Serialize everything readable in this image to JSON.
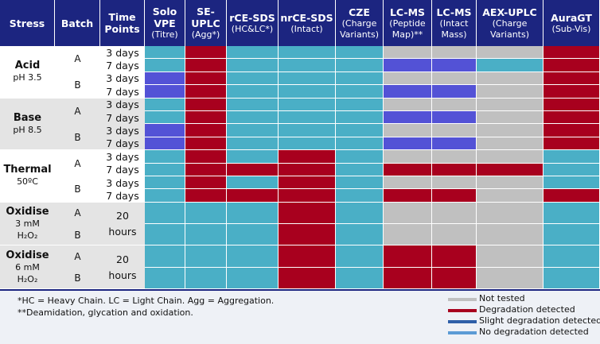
{
  "header": [
    {
      "name": "Stress"
    },
    {
      "name": "Batch"
    },
    {
      "name": "Time Points"
    },
    {
      "name": "Solo VPE",
      "note": "(Titre)"
    },
    {
      "name": "SE-UPLC",
      "note": "(Agg*)"
    },
    {
      "name": "rCE-SDS",
      "note": "(HC&LC*)"
    },
    {
      "name": "nrCE-SDS",
      "note": "(Intact)"
    },
    {
      "name": "CZE",
      "note": "(Charge Variants)"
    },
    {
      "name": "LC-MS",
      "note": "(Peptide Map)**"
    },
    {
      "name": "LC-MS",
      "note": "(Intact Mass)"
    },
    {
      "name": "AEX-UPLC",
      "note": "(Charge Variants)"
    },
    {
      "name": "AuraGT",
      "note": "(Sub-Vis)"
    }
  ],
  "groups": [
    {
      "stress": "Acid",
      "condition": "pH 3.5",
      "batches": [
        {
          "batch": "A",
          "times": [
            "3 days",
            "7 days"
          ],
          "cells": [
            [
              "#4aafc6",
              "#a8001e",
              "#4aafc6",
              "#4aafc6",
              "#4aafc6",
              "#c0c0c0",
              "#c0c0c0",
              "#c0c0c0",
              "#a8001e"
            ],
            [
              "#4aafc6",
              "#a8001e",
              "#4aafc6",
              "#4aafc6",
              "#4aafc6",
              "#5352d6",
              "#5352d6",
              "#4aafc6",
              "#a8001e"
            ]
          ]
        },
        {
          "batch": "B",
          "times": [
            "3 days",
            "7 days"
          ],
          "cells": [
            [
              "#5352d6",
              "#a8001e",
              "#4aafc6",
              "#4aafc6",
              "#4aafc6",
              "#c0c0c0",
              "#c0c0c0",
              "#c0c0c0",
              "#a8001e"
            ],
            [
              "#5352d6",
              "#a8001e",
              "#4aafc6",
              "#4aafc6",
              "#4aafc6",
              "#5352d6",
              "#5352d6",
              "#c0c0c0",
              "#a8001e"
            ]
          ]
        }
      ]
    },
    {
      "stress": "Base",
      "condition": "pH 8.5",
      "batches": [
        {
          "batch": "A",
          "times": [
            "3 days",
            "7 days"
          ],
          "cells": [
            [
              "#4aafc6",
              "#a8001e",
              "#4aafc6",
              "#4aafc6",
              "#4aafc6",
              "#c0c0c0",
              "#c0c0c0",
              "#c0c0c0",
              "#a8001e"
            ],
            [
              "#4aafc6",
              "#a8001e",
              "#4aafc6",
              "#4aafc6",
              "#4aafc6",
              "#5352d6",
              "#5352d6",
              "#c0c0c0",
              "#a8001e"
            ]
          ]
        },
        {
          "batch": "B",
          "times": [
            "3 days",
            "7 days"
          ],
          "cells": [
            [
              "#5352d6",
              "#a8001e",
              "#4aafc6",
              "#4aafc6",
              "#4aafc6",
              "#c0c0c0",
              "#c0c0c0",
              "#c0c0c0",
              "#a8001e"
            ],
            [
              "#5352d6",
              "#a8001e",
              "#4aafc6",
              "#4aafc6",
              "#4aafc6",
              "#5352d6",
              "#5352d6",
              "#c0c0c0",
              "#a8001e"
            ]
          ]
        }
      ]
    },
    {
      "stress": "Thermal",
      "condition": "50ºC",
      "batches": [
        {
          "batch": "A",
          "times": [
            "3 days",
            "7 days"
          ],
          "cells": [
            [
              "#4aafc6",
              "#a8001e",
              "#4aafc6",
              "#a8001e",
              "#4aafc6",
              "#c0c0c0",
              "#c0c0c0",
              "#c0c0c0",
              "#4aafc6"
            ],
            [
              "#4aafc6",
              "#a8001e",
              "#a8001e",
              "#a8001e",
              "#4aafc6",
              "#a8001e",
              "#a8001e",
              "#a8001e",
              "#4aafc6"
            ]
          ]
        },
        {
          "batch": "B",
          "times": [
            "3 days",
            "7 days"
          ],
          "cells": [
            [
              "#4aafc6",
              "#a8001e",
              "#4aafc6",
              "#a8001e",
              "#4aafc6",
              "#c0c0c0",
              "#c0c0c0",
              "#c0c0c0",
              "#4aafc6"
            ],
            [
              "#4aafc6",
              "#a8001e",
              "#a8001e",
              "#a8001e",
              "#4aafc6",
              "#a8001e",
              "#a8001e",
              "#c0c0c0",
              "#a8001e"
            ]
          ]
        }
      ]
    },
    {
      "stress": "Oxidise",
      "condition": "3 mM",
      "reagent": "H₂O₂",
      "time": "20 hours",
      "batches": [
        {
          "batch": "A",
          "cells": [
            [
              "#4aafc6",
              "#4aafc6",
              "#4aafc6",
              "#a8001e",
              "#4aafc6",
              "#c0c0c0",
              "#c0c0c0",
              "#c0c0c0",
              "#4aafc6"
            ]
          ]
        },
        {
          "batch": "B",
          "cells": [
            [
              "#4aafc6",
              "#4aafc6",
              "#4aafc6",
              "#a8001e",
              "#4aafc6",
              "#c0c0c0",
              "#c0c0c0",
              "#c0c0c0",
              "#4aafc6"
            ]
          ]
        }
      ]
    },
    {
      "stress": "Oxidise",
      "condition": "6 mM",
      "reagent": "H₂O₂",
      "time": "20 hours",
      "batches": [
        {
          "batch": "A",
          "cells": [
            [
              "#4aafc6",
              "#4aafc6",
              "#4aafc6",
              "#a8001e",
              "#4aafc6",
              "#a8001e",
              "#a8001e",
              "#c0c0c0",
              "#4aafc6"
            ]
          ]
        },
        {
          "batch": "B",
          "cells": [
            [
              "#4aafc6",
              "#4aafc6",
              "#4aafc6",
              "#a8001e",
              "#4aafc6",
              "#a8001e",
              "#a8001e",
              "#c0c0c0",
              "#4aafc6"
            ]
          ]
        }
      ]
    }
  ],
  "footnotes": [
    "*HC = Heavy Chain. LC = Light Chain. Agg = Aggregation.",
    "**Deamidation, glycation and oxidation."
  ],
  "legend": [
    {
      "label": "Not tested",
      "color": "#c0c0c0"
    },
    {
      "label": "Degradation detected",
      "color": "#a8001e"
    },
    {
      "label": "Slight degradation detected",
      "color": "#2e5fa8"
    },
    {
      "label": "No degradation detected",
      "color": "#5b9bd5"
    }
  ]
}
